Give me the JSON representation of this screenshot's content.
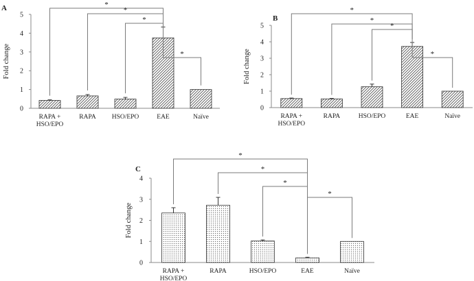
{
  "colors": {
    "bar_fill": "#ffffff",
    "bar_stroke": "#333333",
    "hatch_stroke": "#555555",
    "axis": "#8a8a8a",
    "bracket": "#7a7a7a",
    "text": "#222222"
  },
  "chart_data": [
    {
      "type": "bar",
      "panel_label": "A",
      "pattern": "diagonal",
      "ylabel": "Fold change",
      "ylim": [
        0,
        5
      ],
      "yticks": [
        0,
        1,
        2,
        3,
        4,
        5
      ],
      "categories": [
        [
          "RAPA +",
          "HSO/EPO"
        ],
        [
          "RAPA"
        ],
        [
          "HSO/EPO"
        ],
        [
          "EAE"
        ],
        [
          "Naïve"
        ]
      ],
      "values": [
        0.42,
        0.66,
        0.49,
        3.75,
        1.0
      ],
      "errors": [
        0.03,
        0.07,
        0.09,
        0.58,
        0.0
      ],
      "significance": [
        {
          "from": 0,
          "to": 3,
          "label": "*"
        },
        {
          "from": 1,
          "to": 3,
          "label": "*"
        },
        {
          "from": 2,
          "to": 3,
          "label": "*"
        },
        {
          "from": 3,
          "to": 4,
          "label": "*"
        }
      ]
    },
    {
      "type": "bar",
      "panel_label": "B",
      "pattern": "diagonal",
      "ylabel": "Fold change",
      "ylim": [
        0,
        5
      ],
      "yticks": [
        0,
        1,
        2,
        3,
        4,
        5
      ],
      "categories": [
        [
          "RAPA +",
          "HSO/EPO"
        ],
        [
          "RAPA"
        ],
        [
          "HSO/EPO"
        ],
        [
          "EAE"
        ],
        [
          "Naïve"
        ]
      ],
      "values": [
        0.55,
        0.53,
        1.27,
        3.72,
        1.0
      ],
      "errors": [
        0.03,
        0.03,
        0.16,
        0.24,
        0.0
      ],
      "significance": [
        {
          "from": 0,
          "to": 3,
          "label": "*"
        },
        {
          "from": 1,
          "to": 3,
          "label": "*"
        },
        {
          "from": 2,
          "to": 3,
          "label": "*"
        },
        {
          "from": 3,
          "to": 4,
          "label": "*"
        }
      ]
    },
    {
      "type": "bar",
      "panel_label": "C",
      "pattern": "dots",
      "ylabel": "Fold change",
      "ylim": [
        0,
        4
      ],
      "yticks": [
        0,
        1,
        2,
        3,
        4
      ],
      "categories": [
        [
          "RAPA +",
          "HSO/EPO"
        ],
        [
          "RAPA"
        ],
        [
          "HSO/EPO"
        ],
        [
          "EAE"
        ],
        [
          "Naïve"
        ]
      ],
      "values": [
        2.35,
        2.72,
        1.02,
        0.22,
        1.0
      ],
      "errors": [
        0.25,
        0.37,
        0.05,
        0.03,
        0.0
      ],
      "significance": [
        {
          "from": 0,
          "to": 3,
          "label": "*"
        },
        {
          "from": 1,
          "to": 3,
          "label": "*"
        },
        {
          "from": 2,
          "to": 3,
          "label": "*"
        },
        {
          "from": 3,
          "to": 4,
          "label": "*"
        }
      ]
    }
  ]
}
